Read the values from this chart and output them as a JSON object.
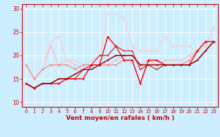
{
  "xlabel": "Vent moyen/en rafales ( km/h )",
  "ylabel": "",
  "background_color": "#cceeff",
  "grid_color": "#aadddd",
  "xlim": [
    -0.5,
    23.5
  ],
  "ylim": [
    9,
    31
  ],
  "yticks": [
    10,
    15,
    20,
    25,
    30
  ],
  "xticks": [
    0,
    1,
    2,
    3,
    4,
    5,
    6,
    7,
    8,
    9,
    10,
    11,
    12,
    13,
    14,
    15,
    16,
    17,
    18,
    19,
    20,
    21,
    22,
    23
  ],
  "series": [
    {
      "x": [
        0,
        1,
        2,
        3,
        4,
        5,
        6,
        7,
        8,
        9,
        10,
        11,
        12,
        13,
        14,
        15,
        16,
        17,
        18,
        19,
        20,
        21,
        22,
        23
      ],
      "y": [
        18,
        15,
        17,
        22,
        18,
        19,
        18,
        17,
        18,
        18,
        18,
        19,
        20,
        20,
        18,
        19,
        18,
        19,
        19,
        19,
        20,
        21,
        22,
        26
      ],
      "color": "#ffbbbb",
      "linewidth": 0.9,
      "markersize": 2.5
    },
    {
      "x": [
        0,
        1,
        2,
        3,
        4,
        5,
        6,
        7,
        8,
        9,
        10,
        11,
        12,
        13,
        14,
        15,
        16,
        17,
        18,
        19,
        20,
        21,
        22,
        23
      ],
      "y": [
        18,
        15,
        17,
        23,
        24,
        19,
        19,
        18,
        19,
        20,
        29,
        29,
        28,
        22,
        21,
        21,
        21,
        24,
        22,
        22,
        22,
        21,
        22,
        26
      ],
      "color": "#ffcccc",
      "linewidth": 0.9,
      "markersize": 2.5
    },
    {
      "x": [
        0,
        1,
        2,
        3,
        4,
        5,
        6,
        7,
        8,
        9,
        10,
        11,
        12,
        13,
        14,
        15,
        16,
        17,
        18,
        19,
        20,
        21,
        22,
        23
      ],
      "y": [
        18,
        15,
        17,
        18,
        18,
        18,
        17,
        18,
        18,
        18,
        18,
        18,
        19,
        19,
        14,
        19,
        19,
        18,
        18,
        18,
        19,
        21,
        23,
        23
      ],
      "color": "#ff8888",
      "linewidth": 0.9,
      "markersize": 2.5
    },
    {
      "x": [
        0,
        1,
        2,
        3,
        4,
        5,
        6,
        7,
        8,
        9,
        10,
        11,
        12,
        13,
        14,
        15,
        16,
        17,
        18,
        19,
        20,
        21,
        22,
        23
      ],
      "y": [
        14,
        13,
        14,
        14,
        15,
        15,
        15,
        17,
        18,
        20,
        20,
        22,
        21,
        21,
        17,
        18,
        17,
        18,
        18,
        18,
        18,
        19,
        21,
        23
      ],
      "color": "#dd2222",
      "linewidth": 0.9,
      "markersize": 2.0
    },
    {
      "x": [
        0,
        1,
        2,
        3,
        4,
        5,
        6,
        7,
        8,
        9,
        10,
        11,
        12,
        13,
        14,
        15,
        16,
        17,
        18,
        19,
        20,
        21,
        22,
        23
      ],
      "y": [
        14,
        13,
        14,
        14,
        14,
        15,
        15,
        15,
        18,
        18,
        24,
        22,
        19,
        19,
        14,
        19,
        19,
        18,
        18,
        18,
        18,
        21,
        23,
        23
      ],
      "color": "#ff0000",
      "linewidth": 1.0,
      "markersize": 2.5
    },
    {
      "x": [
        0,
        1,
        2,
        3,
        4,
        5,
        6,
        7,
        8,
        9,
        10,
        11,
        12,
        13,
        14,
        15,
        16,
        17,
        18,
        19,
        20,
        21,
        22,
        23
      ],
      "y": [
        14,
        13,
        14,
        14,
        15,
        15,
        16,
        17,
        17,
        18,
        19,
        20,
        20,
        20,
        18,
        18,
        18,
        18,
        18,
        18,
        18,
        19,
        21,
        23
      ],
      "color": "#aa0000",
      "linewidth": 1.1,
      "markersize": 2.0
    }
  ]
}
